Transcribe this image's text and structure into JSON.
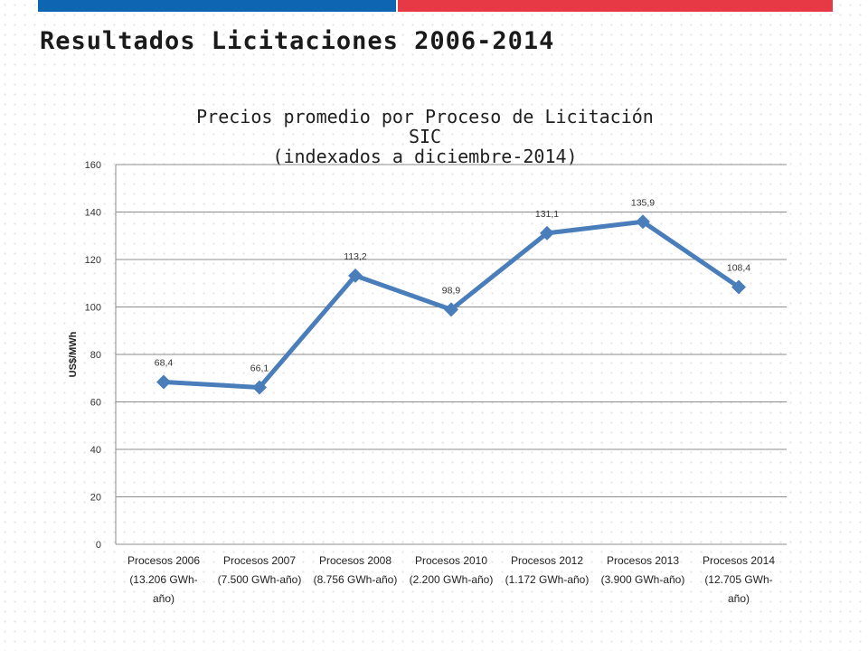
{
  "slide": {
    "title": "Resultados Licitaciones 2006-2014",
    "bar_colors": {
      "blue": "#0e66b2",
      "red": "#e63945"
    }
  },
  "chart_data": {
    "type": "line",
    "title_lines": [
      "Precios promedio por Proceso de Licitación",
      "SIC",
      "(indexados a diciembre-2014)"
    ],
    "ylabel": "US$/MWh",
    "xlabel": "",
    "ylim": [
      0,
      160
    ],
    "yticks": [
      0,
      20,
      40,
      60,
      80,
      100,
      120,
      140,
      160
    ],
    "grid": true,
    "legend": "none",
    "categories": [
      [
        "Procesos 2006",
        "(13.206 GWh-",
        "año)"
      ],
      [
        "Procesos 2007",
        "(7.500 GWh-año)"
      ],
      [
        "Procesos 2008",
        "(8.756 GWh-año)"
      ],
      [
        "Procesos 2010",
        "(2.200 GWh-año)"
      ],
      [
        "Procesos 2012",
        "(1.172 GWh-año)"
      ],
      [
        "Procesos 2013",
        "(3.900 GWh-año)"
      ],
      [
        "Procesos 2014",
        "(12.705 GWh-",
        "año)"
      ]
    ],
    "series": [
      {
        "values": [
          68.4,
          66.1,
          113.2,
          98.9,
          131.1,
          135.9,
          108.4
        ],
        "labels": [
          "68,4",
          "66,1",
          "113,2",
          "98,9",
          "131,1",
          "135,9",
          "108,4"
        ],
        "color": "#4a7ebb",
        "marker": "diamond"
      }
    ]
  }
}
